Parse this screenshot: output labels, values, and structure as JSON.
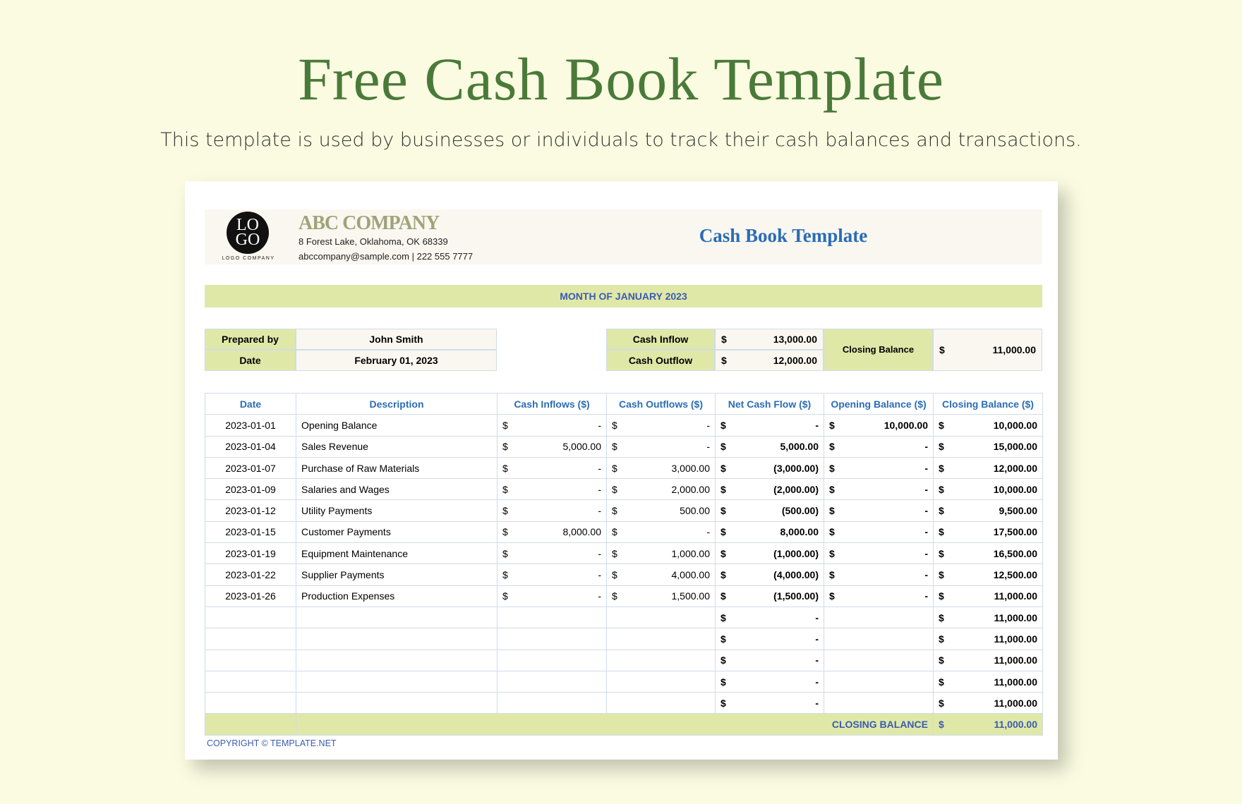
{
  "page": {
    "title": "Free Cash Book Template",
    "subtitle": "This template is used by businesses or individuals to track their cash balances and transactions."
  },
  "header": {
    "logo_top": "LO",
    "logo_bottom": "GO",
    "logo_caption": "LOGO COMPANY",
    "company": "ABC COMPANY",
    "address": "8 Forest Lake, Oklahoma, OK 68339",
    "contact": "abccompany@sample.com |  222 555 7777",
    "doc_title": "Cash Book Template"
  },
  "month": "MONTH OF JANUARY 2023",
  "info": {
    "prepared_label": "Prepared by",
    "prepared_value": "John Smith",
    "date_label": "Date",
    "date_value": "February 01, 2023"
  },
  "summary": {
    "inflow_label": "Cash Inflow",
    "inflow_value": "13,000.00",
    "outflow_label": "Cash Outflow",
    "outflow_value": "12,000.00",
    "closing_label": "Closing Balance",
    "closing_value": "11,000.00",
    "currency": "$"
  },
  "table": {
    "columns": [
      "Date",
      "Description",
      "Cash Inflows ($)",
      "Cash Outflows ($)",
      "Net Cash Flow ($)",
      "Opening Balance ($)",
      "Closing Balance ($)"
    ],
    "rows": [
      [
        "2023-01-01",
        "Opening Balance",
        "-",
        "-",
        "-",
        "10,000.00",
        "10,000.00"
      ],
      [
        "2023-01-04",
        "Sales Revenue",
        "5,000.00",
        "-",
        "5,000.00",
        "-",
        "15,000.00"
      ],
      [
        "2023-01-07",
        "Purchase of Raw Materials",
        "-",
        "3,000.00",
        "(3,000.00)",
        "-",
        "12,000.00"
      ],
      [
        "2023-01-09",
        "Salaries and Wages",
        "-",
        "2,000.00",
        "(2,000.00)",
        "-",
        "10,000.00"
      ],
      [
        "2023-01-12",
        "Utility Payments",
        "-",
        "500.00",
        "(500.00)",
        "-",
        "9,500.00"
      ],
      [
        "2023-01-15",
        "Customer Payments",
        "8,000.00",
        "-",
        "8,000.00",
        "-",
        "17,500.00"
      ],
      [
        "2023-01-19",
        "Equipment Maintenance",
        "-",
        "1,000.00",
        "(1,000.00)",
        "-",
        "16,500.00"
      ],
      [
        "2023-01-22",
        "Supplier Payments",
        "-",
        "4,000.00",
        "(4,000.00)",
        "-",
        "12,500.00"
      ],
      [
        "2023-01-26",
        "Production Expenses",
        "-",
        "1,500.00",
        "(1,500.00)",
        "-",
        "11,000.00"
      ],
      [
        "",
        "",
        "",
        "",
        "-",
        "",
        "11,000.00"
      ],
      [
        "",
        "",
        "",
        "",
        "-",
        "",
        "11,000.00"
      ],
      [
        "",
        "",
        "",
        "",
        "-",
        "",
        "11,000.00"
      ],
      [
        "",
        "",
        "",
        "",
        "-",
        "",
        "11,000.00"
      ],
      [
        "",
        "",
        "",
        "",
        "-",
        "",
        "11,000.00"
      ]
    ],
    "total_label": "CLOSING BALANCE",
    "total_value": "11,000.00"
  },
  "footer": {
    "copyright": "COPYRIGHT © TEMPLATE.NET"
  },
  "colors": {
    "title": "#4a7a3a",
    "accent_green": "#e0e8a8",
    "header_blue": "#2a6db5",
    "label_blue": "#3a5cb0"
  }
}
